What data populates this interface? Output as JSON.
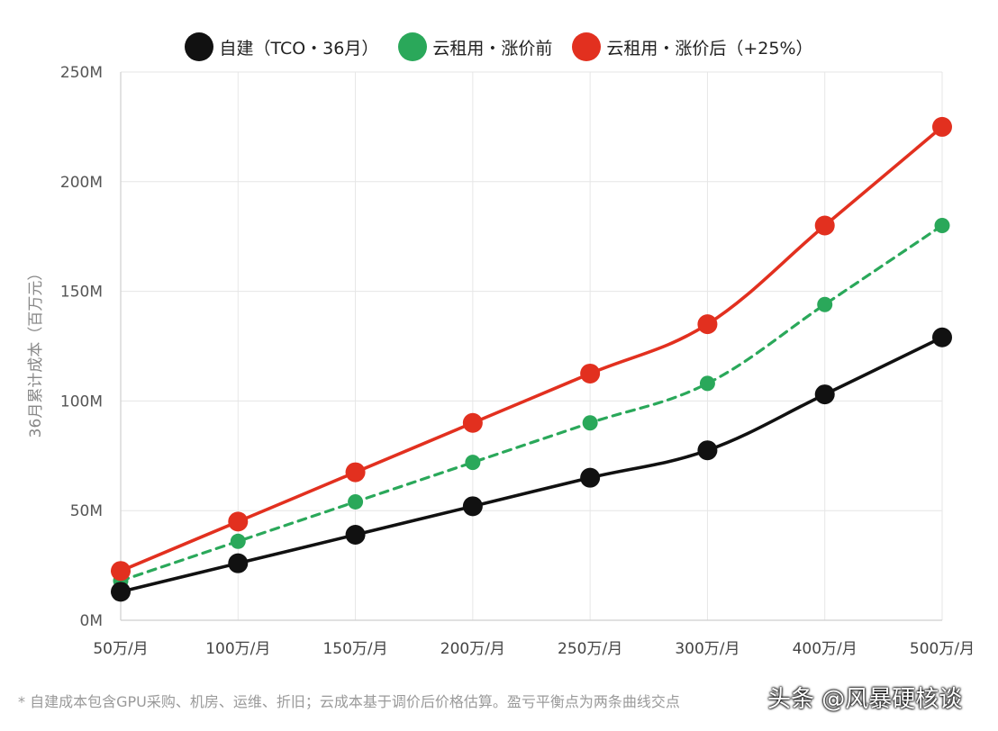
{
  "chart_data": {
    "type": "line",
    "title": "",
    "xlabel": "",
    "ylabel": "36月累计成本（百万元）",
    "categories": [
      "50万/月",
      "100万/月",
      "150万/月",
      "200万/月",
      "250万/月",
      "300万/月",
      "400万/月",
      "500万/月"
    ],
    "ylim": [
      0,
      250
    ],
    "y_ticks": [
      0,
      50,
      100,
      150,
      200,
      250
    ],
    "y_tick_labels": [
      "0M",
      "50M",
      "100M",
      "150M",
      "200M",
      "250M"
    ],
    "grid": true,
    "legend_position": "top-center",
    "series": [
      {
        "name": "自建（TCO・36月）",
        "color": "#111111",
        "style": "solid",
        "values": [
          13,
          26,
          39,
          52,
          65,
          77.5,
          103,
          129
        ]
      },
      {
        "name": "云租用・涨价前",
        "color": "#2aa85a",
        "style": "dashed",
        "values": [
          18,
          36,
          54,
          72,
          90,
          108,
          144,
          180
        ]
      },
      {
        "name": "云租用・涨价后（+25%）",
        "color": "#e2301f",
        "style": "solid",
        "values": [
          22.5,
          45,
          67.5,
          90,
          112.5,
          135,
          180,
          225
        ]
      }
    ]
  },
  "footnote": "* 自建成本包含GPU采购、机房、运维、折旧；云成本基于调价后价格估算。盈亏平衡点为两条曲线交点",
  "watermark": "头条 @风暴硬核谈"
}
